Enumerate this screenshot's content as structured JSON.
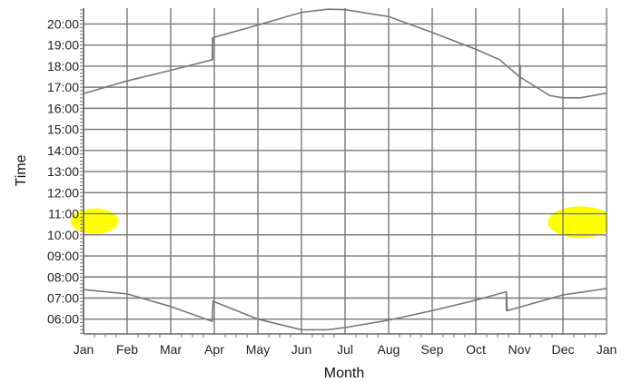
{
  "chart_data": {
    "type": "line",
    "title": "",
    "xlabel": "Month",
    "ylabel": "Time",
    "x_tick_labels": [
      "Jan",
      "Feb",
      "Mar",
      "Apr",
      "May",
      "Jun",
      "Jul",
      "Aug",
      "Sep",
      "Oct",
      "Nov",
      "Dec",
      "Jan"
    ],
    "y_tick_labels": [
      "06:00",
      "07:00",
      "08:00",
      "09:00",
      "10:00",
      "11:00",
      "12:00",
      "13:00",
      "14:00",
      "15:00",
      "16:00",
      "17:00",
      "18:00",
      "19:00",
      "20:00"
    ],
    "xlim": [
      0,
      12
    ],
    "ylim": [
      5.3,
      20.75
    ],
    "grid": true,
    "series": [
      {
        "name": "",
        "color": "#777777",
        "points": [
          [
            0,
            16.7
          ],
          [
            1,
            17.3
          ],
          [
            2,
            17.8
          ],
          [
            2.95,
            18.3
          ],
          [
            2.97,
            19.35
          ],
          [
            4,
            19.95
          ],
          [
            5,
            20.55
          ],
          [
            5.6,
            20.7
          ],
          [
            6,
            20.68
          ],
          [
            7,
            20.35
          ],
          [
            8,
            19.6
          ],
          [
            9,
            18.8
          ],
          [
            9.55,
            18.3
          ],
          [
            10,
            17.5
          ],
          [
            10.7,
            16.6
          ],
          [
            11,
            16.5
          ],
          [
            11.4,
            16.5
          ],
          [
            12,
            16.72
          ]
        ],
        "breaks": [
          [
            2.96,
            18.3,
            19.35
          ],
          [
            10.02,
            18.05,
            17.0
          ]
        ]
      },
      {
        "name": "",
        "color": "#777777",
        "points": [
          [
            0,
            7.4
          ],
          [
            1,
            7.2
          ],
          [
            2,
            6.6
          ],
          [
            2.95,
            5.9
          ],
          [
            2.97,
            6.85
          ],
          [
            4,
            6.0
          ],
          [
            5,
            5.5
          ],
          [
            5.6,
            5.5
          ],
          [
            6,
            5.6
          ],
          [
            7,
            5.95
          ],
          [
            8,
            6.4
          ],
          [
            9,
            6.9
          ],
          [
            9.7,
            7.3
          ],
          [
            9.72,
            6.4
          ],
          [
            11,
            7.15
          ],
          [
            12,
            7.45
          ]
        ],
        "breaks": [
          [
            9.7,
            7.3,
            6.4
          ]
        ]
      }
    ],
    "highlights": [
      {
        "color": "#ffff00",
        "x_center": 0.25,
        "y_center": 10.65,
        "x_radius": 0.55,
        "y_radius": 0.6
      },
      {
        "color": "#ffff00",
        "x_center": 11.4,
        "y_center": 10.6,
        "x_radius": 0.75,
        "y_radius": 0.75
      }
    ]
  }
}
